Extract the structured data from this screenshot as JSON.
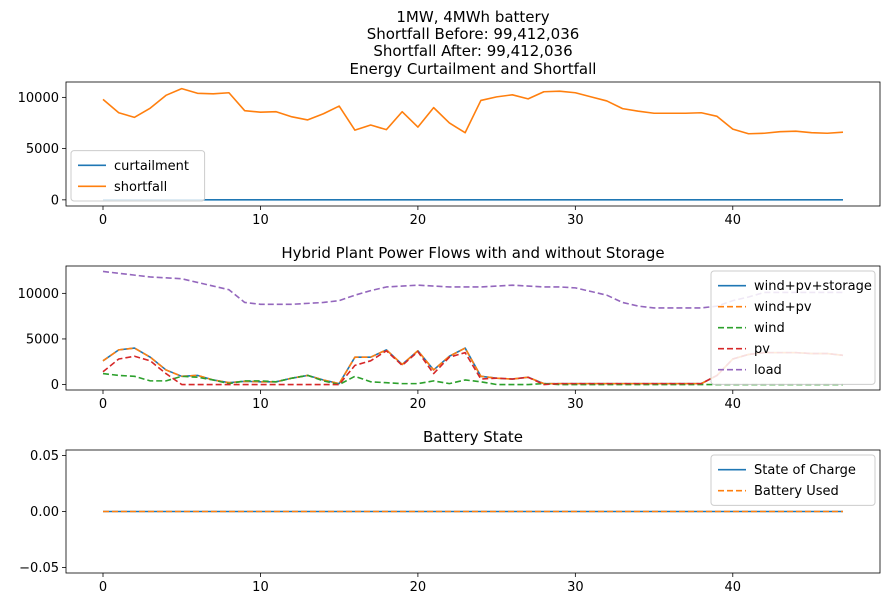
{
  "figure": {
    "suptitle": [
      "1MW, 4MWh battery",
      "Shortfall Before: 99,412,036",
      "Shortfall After: 99,412,036"
    ]
  },
  "chart_data": [
    {
      "type": "line",
      "title": "Energy Curtailment and Shortfall",
      "x": [
        0,
        1,
        2,
        3,
        4,
        5,
        6,
        7,
        8,
        9,
        10,
        11,
        12,
        13,
        14,
        15,
        16,
        17,
        18,
        19,
        20,
        21,
        22,
        23,
        24,
        25,
        26,
        27,
        28,
        29,
        30,
        31,
        32,
        33,
        34,
        35,
        36,
        37,
        38,
        39,
        40,
        41,
        42,
        43,
        44,
        45,
        46,
        47
      ],
      "xlim": [
        -2.35,
        49.35
      ],
      "ylim": [
        -600,
        11500
      ],
      "xticks": [
        0,
        10,
        20,
        30,
        40
      ],
      "yticks": [
        0,
        5000,
        10000
      ],
      "legend_loc": "lower-left",
      "series": [
        {
          "name": "curtailment",
          "color": "#1f77b4",
          "dash": "",
          "values": [
            0,
            0,
            0,
            0,
            0,
            0,
            0,
            0,
            0,
            0,
            0,
            0,
            0,
            0,
            0,
            0,
            0,
            0,
            0,
            0,
            0,
            0,
            0,
            0,
            0,
            0,
            0,
            0,
            0,
            0,
            0,
            0,
            0,
            0,
            0,
            0,
            0,
            0,
            0,
            0,
            0,
            0,
            0,
            0,
            0,
            0,
            0,
            0
          ]
        },
        {
          "name": "shortfall",
          "color": "#ff7f0e",
          "dash": "",
          "values": [
            9800,
            8500,
            8050,
            8950,
            10200,
            10850,
            10400,
            10350,
            10450,
            8700,
            8550,
            8600,
            8100,
            7800,
            8400,
            9150,
            6800,
            7300,
            6850,
            8600,
            7100,
            9000,
            7500,
            6550,
            9700,
            10050,
            10250,
            9850,
            10550,
            10600,
            10450,
            10050,
            9650,
            8900,
            8650,
            8450,
            8450,
            8450,
            8500,
            8150,
            6900,
            6450,
            6500,
            6650,
            6700,
            6550,
            6500,
            6600
          ]
        }
      ]
    },
    {
      "type": "line",
      "title": "Hybrid Plant Power Flows with and without Storage",
      "x": [
        0,
        1,
        2,
        3,
        4,
        5,
        6,
        7,
        8,
        9,
        10,
        11,
        12,
        13,
        14,
        15,
        16,
        17,
        18,
        19,
        20,
        21,
        22,
        23,
        24,
        25,
        26,
        27,
        28,
        29,
        30,
        31,
        32,
        33,
        34,
        35,
        36,
        37,
        38,
        39,
        40,
        41,
        42,
        43,
        44,
        45,
        46,
        47
      ],
      "xlim": [
        -2.35,
        49.35
      ],
      "ylim": [
        -600,
        13000
      ],
      "xticks": [
        0,
        10,
        20,
        30,
        40
      ],
      "yticks": [
        0,
        5000,
        10000
      ],
      "legend_loc": "upper-right",
      "series": [
        {
          "name": "wind+pv+storage",
          "color": "#1f77b4",
          "dash": "",
          "values": [
            2600,
            3800,
            4000,
            3000,
            1600,
            900,
            1000,
            500,
            200,
            350,
            300,
            300,
            700,
            1000,
            500,
            100,
            3000,
            3000,
            3800,
            2200,
            3700,
            1600,
            3100,
            4000,
            900,
            700,
            600,
            800,
            100,
            100,
            100,
            100,
            100,
            100,
            100,
            100,
            100,
            100,
            100,
            1000,
            2800,
            3300,
            3500,
            3500,
            3500,
            3400,
            3400,
            3200
          ]
        },
        {
          "name": "wind+pv",
          "color": "#ff7f0e",
          "dash": "6,3",
          "values": [
            2600,
            3800,
            4000,
            3000,
            1600,
            900,
            1000,
            500,
            200,
            350,
            300,
            300,
            700,
            1000,
            500,
            100,
            3000,
            3000,
            3800,
            2200,
            3700,
            1600,
            3100,
            4000,
            900,
            700,
            600,
            800,
            100,
            100,
            100,
            100,
            100,
            100,
            100,
            100,
            100,
            100,
            100,
            1000,
            2800,
            3300,
            3500,
            3500,
            3500,
            3400,
            3400,
            3200
          ]
        },
        {
          "name": "wind",
          "color": "#2ca02c",
          "dash": "6,3",
          "values": [
            1200,
            1000,
            900,
            400,
            400,
            900,
            800,
            500,
            100,
            400,
            400,
            300,
            700,
            1000,
            400,
            0,
            900,
            300,
            200,
            100,
            100,
            400,
            100,
            500,
            300,
            0,
            0,
            0,
            100,
            0,
            0,
            0,
            0,
            0,
            0,
            0,
            0,
            0,
            0,
            0,
            0,
            0,
            0,
            0,
            0,
            0,
            0,
            0
          ]
        },
        {
          "name": "pv",
          "color": "#d62728",
          "dash": "6,3",
          "values": [
            1400,
            2800,
            3100,
            2600,
            1200,
            0,
            0,
            0,
            0,
            0,
            0,
            0,
            0,
            0,
            0,
            0,
            2100,
            2600,
            3700,
            2100,
            3600,
            1200,
            3000,
            3500,
            600,
            700,
            600,
            800,
            0,
            100,
            100,
            100,
            100,
            100,
            100,
            100,
            100,
            100,
            100,
            1000,
            2800,
            3300,
            3500,
            3500,
            3500,
            3400,
            3400,
            3200
          ]
        },
        {
          "name": "load",
          "color": "#9467bd",
          "dash": "6,3",
          "values": [
            12400,
            12200,
            12000,
            11800,
            11700,
            11600,
            11200,
            10800,
            10400,
            9000,
            8800,
            8800,
            8800,
            8900,
            9000,
            9200,
            9800,
            10300,
            10700,
            10800,
            10900,
            10800,
            10700,
            10700,
            10700,
            10800,
            10900,
            10800,
            10700,
            10700,
            10600,
            10200,
            9800,
            9000,
            8600,
            8400,
            8400,
            8400,
            8400,
            8600,
            9200,
            9600,
            10100,
            10100,
            10100,
            10100,
            10100,
            10100
          ]
        }
      ]
    },
    {
      "type": "line",
      "title": "Battery State",
      "x": [
        0,
        1,
        2,
        3,
        4,
        5,
        6,
        7,
        8,
        9,
        10,
        11,
        12,
        13,
        14,
        15,
        16,
        17,
        18,
        19,
        20,
        21,
        22,
        23,
        24,
        25,
        26,
        27,
        28,
        29,
        30,
        31,
        32,
        33,
        34,
        35,
        36,
        37,
        38,
        39,
        40,
        41,
        42,
        43,
        44,
        45,
        46,
        47
      ],
      "xlim": [
        -2.35,
        49.35
      ],
      "ylim": [
        -0.055,
        0.055
      ],
      "xticks": [
        0,
        10,
        20,
        30,
        40
      ],
      "yticks": [
        -0.05,
        0.0,
        0.05
      ],
      "ytick_labels": [
        "−0.05",
        "0.00",
        "0.05"
      ],
      "legend_loc": "upper-right",
      "series": [
        {
          "name": "State of Charge",
          "color": "#1f77b4",
          "dash": "",
          "values": [
            0,
            0,
            0,
            0,
            0,
            0,
            0,
            0,
            0,
            0,
            0,
            0,
            0,
            0,
            0,
            0,
            0,
            0,
            0,
            0,
            0,
            0,
            0,
            0,
            0,
            0,
            0,
            0,
            0,
            0,
            0,
            0,
            0,
            0,
            0,
            0,
            0,
            0,
            0,
            0,
            0,
            0,
            0,
            0,
            0,
            0,
            0,
            0
          ]
        },
        {
          "name": "Battery Used",
          "color": "#ff7f0e",
          "dash": "6,3",
          "values": [
            0,
            0,
            0,
            0,
            0,
            0,
            0,
            0,
            0,
            0,
            0,
            0,
            0,
            0,
            0,
            0,
            0,
            0,
            0,
            0,
            0,
            0,
            0,
            0,
            0,
            0,
            0,
            0,
            0,
            0,
            0,
            0,
            0,
            0,
            0,
            0,
            0,
            0,
            0,
            0,
            0,
            0,
            0,
            0,
            0,
            0,
            0,
            0
          ]
        }
      ]
    }
  ]
}
